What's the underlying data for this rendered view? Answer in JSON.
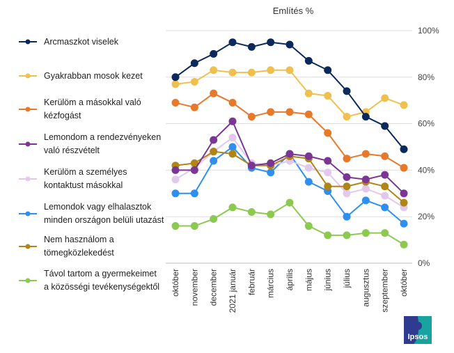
{
  "chart_data": {
    "type": "line",
    "title": "Említés %",
    "xlabel": "",
    "ylabel": "",
    "ylim": [
      0,
      100
    ],
    "y_ticks": [
      "0%",
      "20%",
      "40%",
      "60%",
      "80%",
      "100%"
    ],
    "y_axis_side": "right",
    "grid": true,
    "legend_placement": "left",
    "categories": [
      "október",
      "november",
      "december",
      "2021 január",
      "február",
      "március",
      "április",
      "május",
      "június",
      "július",
      "augusztus",
      "szeptember",
      "október"
    ],
    "series": [
      {
        "name": "Arcmaszkot viselek",
        "color": "#0b2a5b",
        "values": [
          80,
          86,
          90,
          95,
          93,
          95,
          94,
          87,
          83,
          74,
          63,
          59,
          49
        ]
      },
      {
        "name": "Gyakrabban mosok kezet",
        "color": "#f0c04f",
        "values": [
          77,
          78,
          83,
          82,
          82,
          83,
          83,
          73,
          72,
          63,
          65,
          71,
          68
        ]
      },
      {
        "name": "Kerülöm a másokkal való\nkézfogást",
        "color": "#e8792b",
        "values": [
          69,
          67,
          73,
          69,
          63,
          65,
          65,
          64,
          56,
          45,
          47,
          46,
          41
        ]
      },
      {
        "name": "Lemondom a rendezvényeken\nvaló részvételt",
        "color": "#7b3594",
        "values": [
          40,
          40,
          53,
          61,
          42,
          43,
          47,
          46,
          44,
          37,
          36,
          38,
          30
        ]
      },
      {
        "name": "Kerülöm a személyes\nkontaktust másokkal",
        "color": "#e2c8ec",
        "values": [
          36,
          41,
          48,
          54,
          43,
          42,
          44,
          41,
          39,
          30,
          32,
          29,
          24
        ]
      },
      {
        "name": "Lemondok vagy elhalasztok\nminden országon belüli utazást",
        "color": "#2e8ff0",
        "values": [
          30,
          30,
          44,
          50,
          41,
          39,
          47,
          35,
          31,
          20,
          27,
          24,
          17
        ]
      },
      {
        "name": "Nem használom a\ntömegközlekedést",
        "color": "#b08518",
        "values": [
          42,
          43,
          48,
          47,
          42,
          42,
          46,
          45,
          33,
          33,
          35,
          33,
          26
        ]
      },
      {
        "name": "Távol tartom a gyermekeimet\na közösségi tevékenységektől",
        "color": "#8cc94f",
        "values": [
          16,
          16,
          19,
          24,
          22,
          21,
          26,
          16,
          12,
          12,
          13,
          13,
          8
        ]
      }
    ]
  },
  "logo": {
    "text": "Ipsos"
  }
}
